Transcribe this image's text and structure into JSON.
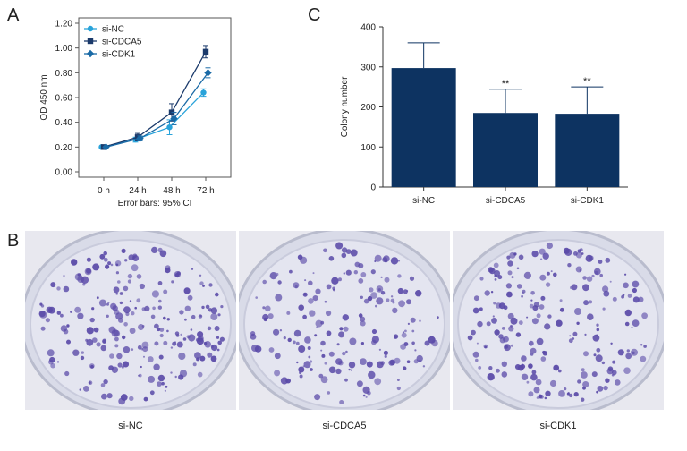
{
  "panel_labels": {
    "a": "A",
    "b": "B",
    "c": "C"
  },
  "chart_data": [
    {
      "type": "line",
      "panel": "A",
      "xlabel": "Error bars: 95% CI",
      "ylabel": "OD 450 nm",
      "categories": [
        "0 h",
        "24 h",
        "48 h",
        "72 h"
      ],
      "ylim": [
        0,
        1.2
      ],
      "yticks": [
        "0.00",
        "0.20",
        "0.40",
        "0.60",
        "0.80",
        "1.00",
        "1.20"
      ],
      "legend_position": "top-left",
      "series": [
        {
          "name": "si-NC",
          "marker": "circle",
          "color": "#29a3da",
          "values": [
            0.2,
            0.26,
            0.36,
            0.64
          ],
          "err": [
            0.005,
            0.02,
            0.06,
            0.03
          ]
        },
        {
          "name": "si-CDCA5",
          "marker": "square",
          "color": "#1b3a6b",
          "values": [
            0.2,
            0.28,
            0.48,
            0.97
          ],
          "err": [
            0.005,
            0.03,
            0.07,
            0.05
          ]
        },
        {
          "name": "si-CDK1",
          "marker": "diamond",
          "color": "#1a6aa6",
          "values": [
            0.2,
            0.27,
            0.43,
            0.8
          ],
          "err": [
            0.005,
            0.02,
            0.05,
            0.04
          ]
        }
      ]
    },
    {
      "type": "bar",
      "panel": "C",
      "ylabel": "Colony number",
      "categories": [
        "si-NC",
        "si-CDCA5",
        "si-CDK1"
      ],
      "values": [
        297,
        185,
        183
      ],
      "err_upper": [
        360,
        244,
        250
      ],
      "annotations": [
        "",
        "**",
        "**"
      ],
      "ylim": [
        0,
        400
      ],
      "yticks": [
        "0",
        "100",
        "200",
        "300",
        "400"
      ],
      "bar_color": "#0d3361"
    }
  ],
  "photos": {
    "labels": [
      "si-NC",
      "si-CDCA5",
      "si-CDK1"
    ],
    "dish_color": "#d9dbe8",
    "colony_color": "#5a4aa8"
  }
}
